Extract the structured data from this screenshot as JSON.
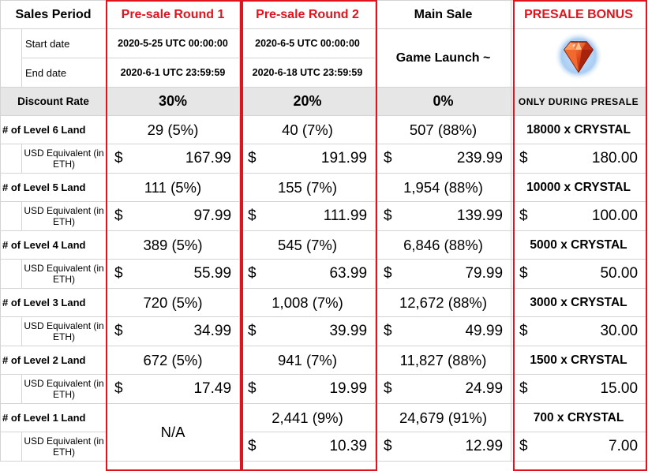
{
  "header": {
    "sales_period": "Sales Period",
    "columns": [
      "Pre-sale Round 1",
      "Pre-sale Round 2",
      "Main Sale",
      "PRESALE BONUS"
    ]
  },
  "dates": {
    "start_label": "Start date",
    "end_label": "End date",
    "round1_start": "2020-5-25 UTC 00:00:00",
    "round1_end": "2020-6-1 UTC 23:59:59",
    "round2_start": "2020-6-5 UTC 00:00:00",
    "round2_end": "2020-6-18 UTC 23:59:59",
    "main_sale": "Game Launch ~"
  },
  "discount": {
    "label": "Discount Rate",
    "round1": "30%",
    "round2": "20%",
    "main": "0%",
    "bonus_note": "ONLY DURING PRESALE"
  },
  "usd_label": "USD Equivalent (in ETH)",
  "currency": "$",
  "na": "N/A",
  "colors": {
    "accent_red": "#e0141e",
    "grey_row": "#e6e6e6",
    "gem": "#d9401a"
  },
  "icons": {
    "bonus": "crystal-gem-icon"
  },
  "levels": [
    {
      "label": "# of Level 6 Land",
      "r1_qty": "29 (5%)",
      "r2_qty": "40 (7%)",
      "main_qty": "507 (88%)",
      "bonus": "18000 x CRYSTAL",
      "r1_price": "167.99",
      "r2_price": "191.99",
      "main_price": "239.99",
      "bonus_price": "180.00"
    },
    {
      "label": "# of Level 5 Land",
      "r1_qty": "111 (5%)",
      "r2_qty": "155 (7%)",
      "main_qty": "1,954 (88%)",
      "bonus": "10000 x CRYSTAL",
      "r1_price": "97.99",
      "r2_price": "111.99",
      "main_price": "139.99",
      "bonus_price": "100.00"
    },
    {
      "label": "# of Level 4 Land",
      "r1_qty": "389  (5%)",
      "r2_qty": "545 (7%)",
      "main_qty": "6,846 (88%)",
      "bonus": "5000 x CRYSTAL",
      "r1_price": "55.99",
      "r2_price": "63.99",
      "main_price": "79.99",
      "bonus_price": "50.00"
    },
    {
      "label": "# of Level 3 Land",
      "r1_qty": "720 (5%)",
      "r2_qty": "1,008 (7%)",
      "main_qty": "12,672 (88%)",
      "bonus": "3000 x CRYSTAL",
      "r1_price": "34.99",
      "r2_price": "39.99",
      "main_price": "49.99",
      "bonus_price": "30.00"
    },
    {
      "label": "# of Level 2 Land",
      "r1_qty": "672 (5%)",
      "r2_qty": "941 (7%)",
      "main_qty": "11,827 (88%)",
      "bonus": "1500 x CRYSTAL",
      "r1_price": "17.49",
      "r2_price": "19.99",
      "main_price": "24.99",
      "bonus_price": "15.00"
    },
    {
      "label": "# of Level 1 Land",
      "r2_qty": "2,441 (9%)",
      "main_qty": "24,679 (91%)",
      "bonus": "700 x CRYSTAL",
      "r2_price": "10.39",
      "main_price": "12.99",
      "bonus_price": "7.00"
    }
  ]
}
